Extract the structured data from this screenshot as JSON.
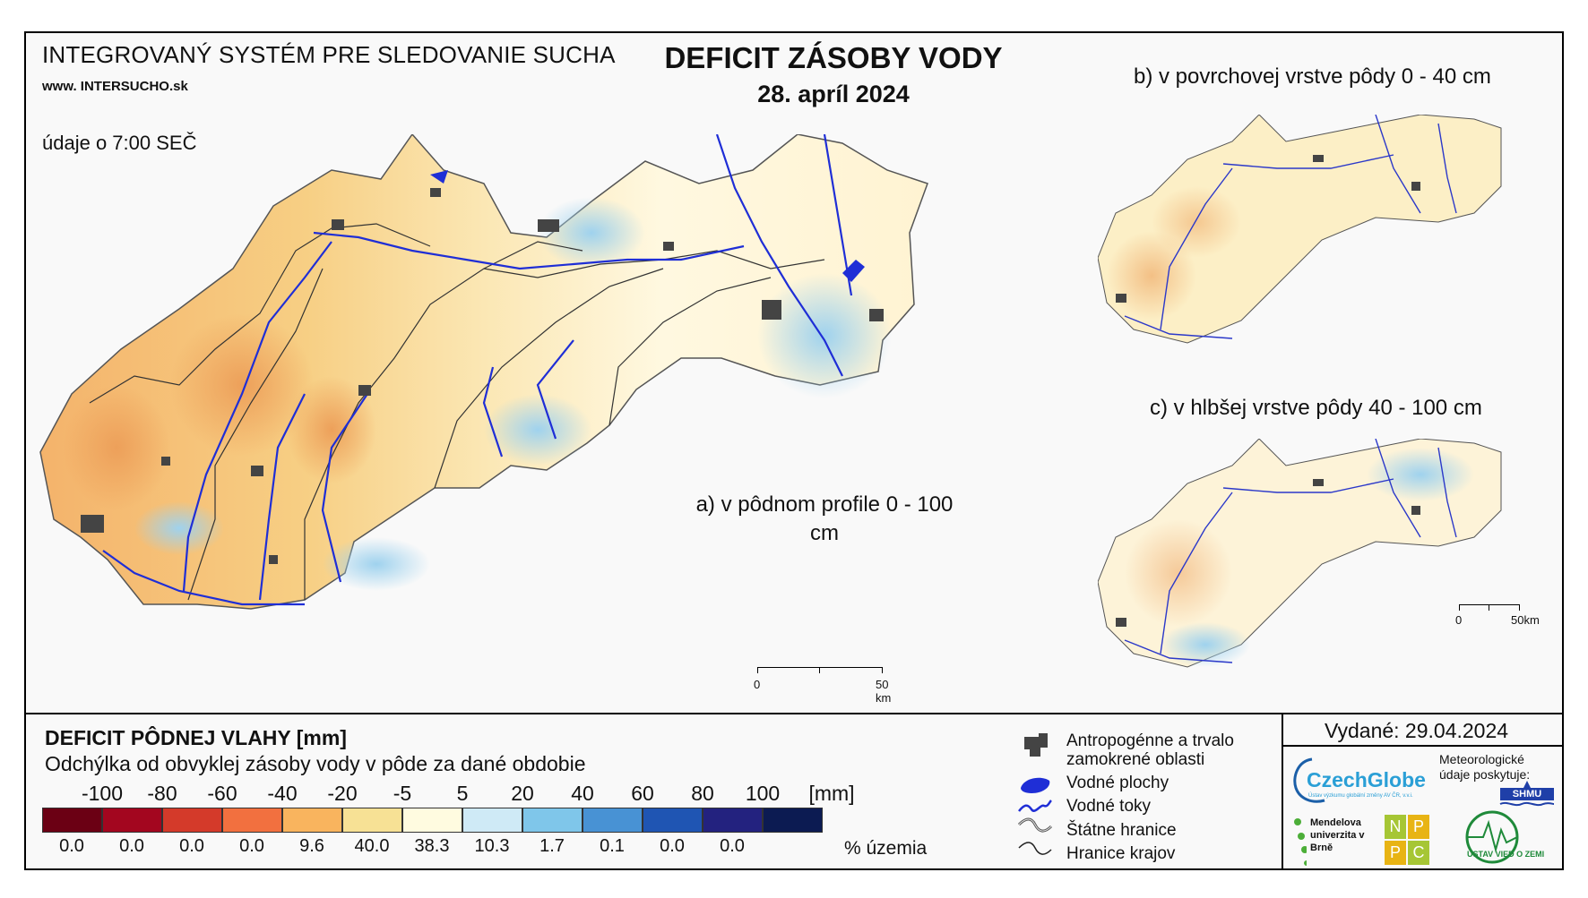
{
  "header": {
    "system_title": "INTEGROVANÝ SYSTÉM PRE SLEDOVANIE SUCHA",
    "website": "www. INTERSUCHO.sk",
    "data_time": "údaje o 7:00 SEČ",
    "main_title": "DEFICIT ZÁSOBY VODY",
    "main_date": "28. apríl 2024"
  },
  "panels": {
    "a_label": "a) v pôdnom profile 0 - 100 cm",
    "b_label": "b) v povrchovej vrstve pôdy 0 - 40 cm",
    "c_label": "c) v hlbšej vrstve pôdy 40 - 100 cm"
  },
  "scalebar": {
    "zero": "0",
    "end": "50 km",
    "end_small": "50km"
  },
  "legend": {
    "title": "DEFICIT PÔDNEJ VLAHY [mm]",
    "subtitle": "Odchýlka od obvyklej zásoby vody v pôde za dané obdobie",
    "ticks": [
      "-100",
      "-80",
      "-60",
      "-40",
      "-20",
      "-5",
      "5",
      "20",
      "40",
      "60",
      "80",
      "100"
    ],
    "unit": "[mm]",
    "colors": [
      "#6b0014",
      "#a3061f",
      "#d43a2a",
      "#f2703f",
      "#f9b45e",
      "#f7e195",
      "#fffbe0",
      "#cfeaf6",
      "#7fc6ea",
      "#4892d4",
      "#1f55b3",
      "#23227f",
      "#0c1b52"
    ],
    "percent": [
      "0.0",
      "0.0",
      "0.0",
      "0.0",
      "9.6",
      "40.0",
      "38.3",
      "10.3",
      "1.7",
      "0.1",
      "0.0",
      "0.0"
    ],
    "percent_unit": "% územia"
  },
  "map_legend": {
    "urban": "Antropogénne a trvalo zamokrené oblasti",
    "water_bodies": "Vodné plochy",
    "rivers": "Vodné toky",
    "state_border": "Štátne hranice",
    "regions": "Hranice krajov"
  },
  "footer": {
    "issued": "Vydané: 29.04.2024",
    "czechglobe": "CzechGlobe",
    "czechglobe_sub": "Ústav výzkumu globální změny AV ČR, v.v.i.",
    "meteo_note": "Meteorologické údaje poskytuje:",
    "shmu": "SHMU",
    "mendel": "Mendelova univerzita v Brně",
    "nppc": [
      "N",
      "P",
      "P",
      "C"
    ],
    "ustav": "ÚSTAV VIED O ZEMI"
  }
}
